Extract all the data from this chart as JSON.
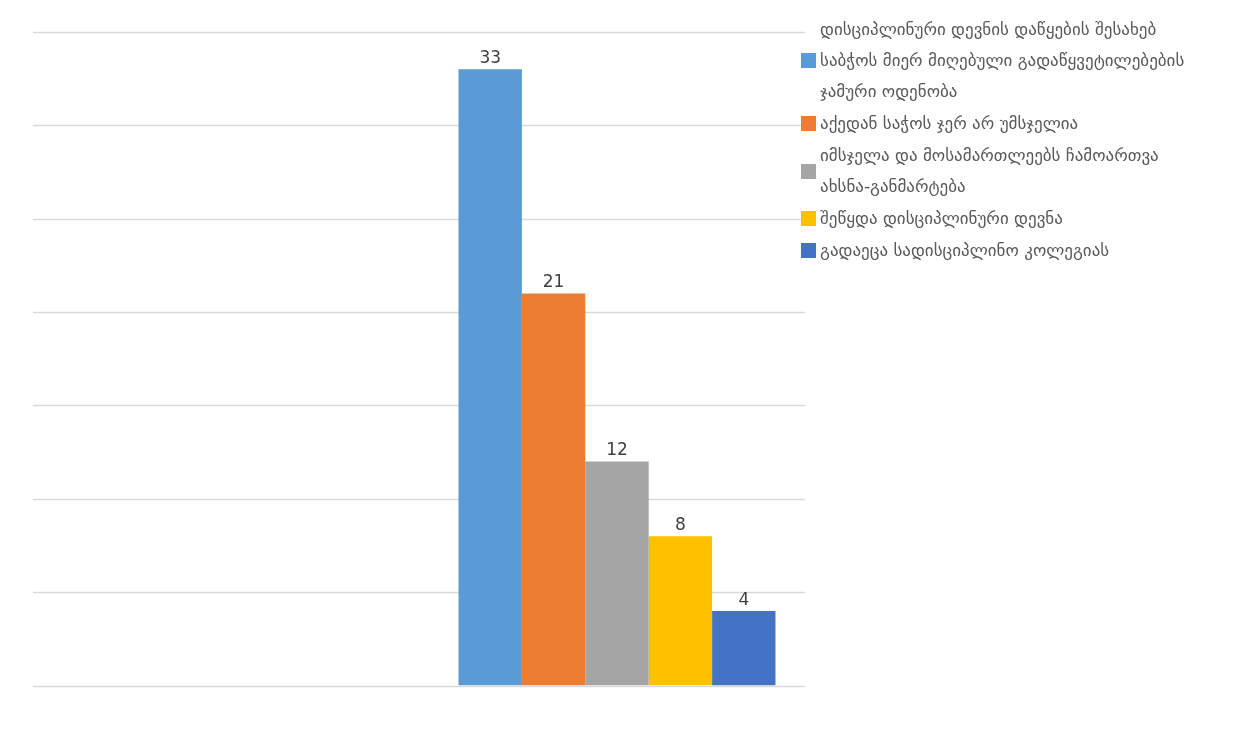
{
  "chart_data": {
    "type": "bar",
    "categories": [
      null
    ],
    "series": [
      {
        "name": "დისციპლინური დევნის დაწყების შესახებ საბჭოს მიერ მიღებული გადაწყვეტილებების ჯამური ოდენობა",
        "color": "#5b9bd5",
        "values": [
          33
        ]
      },
      {
        "name": "აქედან საჭოს ჯერ არ უმსჯელია",
        "color": "#ed7d31",
        "values": [
          21
        ]
      },
      {
        "name": "იმსჯელა და მოსამართლეებს ჩამოართვა ახსნა-განმარტება",
        "color": "#a5a5a5",
        "values": [
          12
        ]
      },
      {
        "name": "შეწყდა დისციპლინური დევნა",
        "color": "#ffc000",
        "values": [
          8
        ]
      },
      {
        "name": "გადაეცა სადისციპლინო კოლეგიას",
        "color": "#4472c4",
        "values": [
          4
        ]
      }
    ],
    "ylim": [
      0,
      35
    ],
    "yticks": [
      {
        "value": 0,
        "label": null
      },
      {
        "value": 5,
        "label": null
      },
      {
        "value": 10,
        "label": null
      },
      {
        "value": 15,
        "label": null
      },
      {
        "value": 20,
        "label": null
      },
      {
        "value": 25,
        "label": null
      },
      {
        "value": 30,
        "label": null
      },
      {
        "value": 35,
        "label": null
      }
    ],
    "grid": "y",
    "legend": "right",
    "data_labels": true
  }
}
